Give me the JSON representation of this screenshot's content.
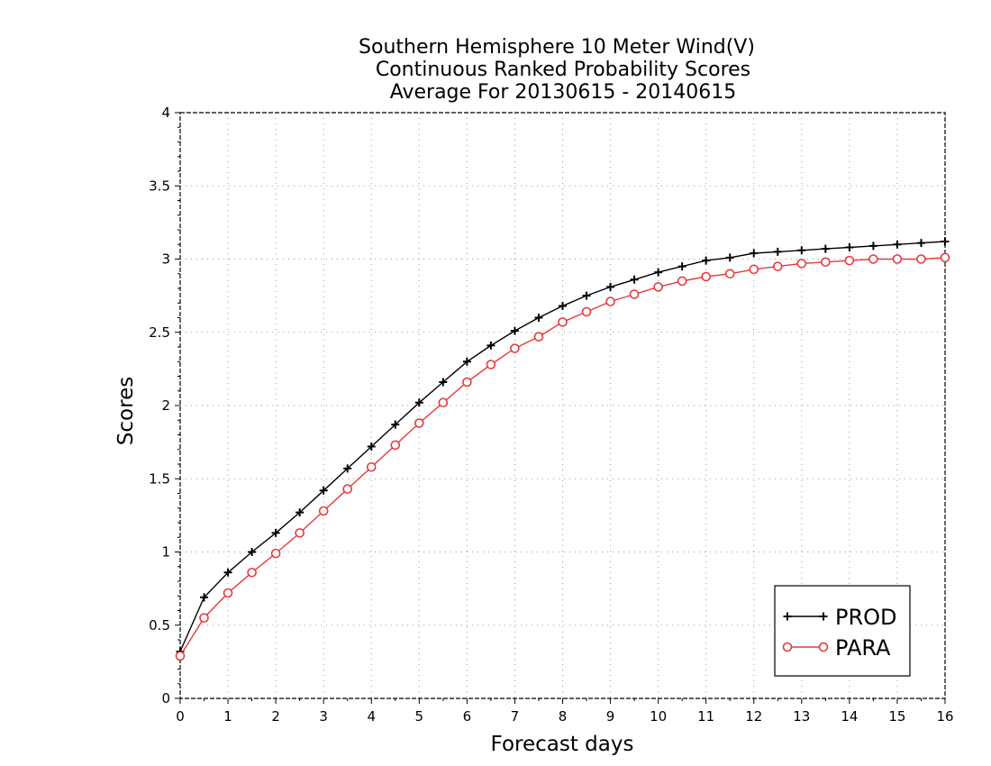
{
  "chart_data": {
    "type": "line",
    "title_lines": [
      "Southern Hemisphere 10 Meter Wind(V)",
      "Continuous Ranked Probability Scores",
      "Average For 20130615 - 20140615"
    ],
    "xlabel": "Forecast days",
    "ylabel": "Scores",
    "xlim": [
      0,
      16
    ],
    "ylim": [
      0,
      4
    ],
    "x_ticks": [
      "0",
      "1",
      "2",
      "3",
      "4",
      "5",
      "6",
      "7",
      "8",
      "9",
      "10",
      "11",
      "12",
      "13",
      "14",
      "15",
      "16"
    ],
    "y_ticks": [
      "0",
      "0.5",
      "1",
      "1.5",
      "2",
      "2.5",
      "3",
      "3.5",
      "4"
    ],
    "grid": true,
    "legend_position": "bottom-right",
    "x": [
      0,
      0.5,
      1,
      1.5,
      2,
      2.5,
      3,
      3.5,
      4,
      4.5,
      5,
      5.5,
      6,
      6.5,
      7,
      7.5,
      8,
      8.5,
      9,
      9.5,
      10,
      10.5,
      11,
      11.5,
      12,
      12.5,
      13,
      13.5,
      14,
      14.5,
      15,
      15.5,
      16
    ],
    "series": [
      {
        "name": "PROD",
        "color": "#000000",
        "marker": "plus",
        "values": [
          0.32,
          0.69,
          0.86,
          1.0,
          1.13,
          1.27,
          1.42,
          1.57,
          1.72,
          1.87,
          2.02,
          2.16,
          2.3,
          2.41,
          2.51,
          2.6,
          2.68,
          2.75,
          2.81,
          2.86,
          2.91,
          2.95,
          2.99,
          3.01,
          3.04,
          3.05,
          3.06,
          3.07,
          3.08,
          3.09,
          3.1,
          3.11,
          3.12
        ]
      },
      {
        "name": "PARA",
        "color": "#e8393b",
        "marker": "circle",
        "values": [
          0.29,
          0.55,
          0.72,
          0.86,
          0.99,
          1.13,
          1.28,
          1.43,
          1.58,
          1.73,
          1.88,
          2.02,
          2.16,
          2.28,
          2.39,
          2.47,
          2.57,
          2.64,
          2.71,
          2.76,
          2.81,
          2.85,
          2.88,
          2.9,
          2.93,
          2.95,
          2.97,
          2.98,
          2.99,
          3.0,
          3.0,
          3.0,
          3.01
        ]
      }
    ]
  }
}
